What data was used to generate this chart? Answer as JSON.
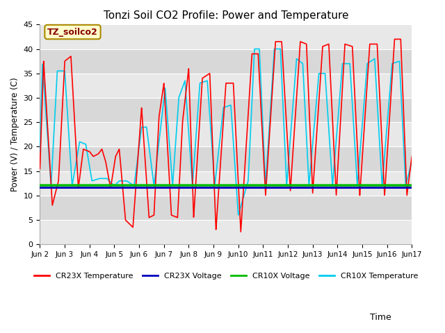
{
  "title": "Tonzi Soil CO2 Profile: Power and Temperature",
  "ylabel": "Power (V) / Temperature (C)",
  "xlabel": "Time",
  "ylim": [
    0,
    45
  ],
  "xlim": [
    0,
    15
  ],
  "yticks": [
    0,
    5,
    10,
    15,
    20,
    25,
    30,
    35,
    40,
    45
  ],
  "xtick_labels": [
    "Jun 2",
    "Jun 3",
    "Jun 4",
    "Jun 5",
    "Jun 6",
    "Jun 7",
    "Jun 8",
    "Jun 9",
    "Jun 10",
    "Jun 11",
    "Jun 12",
    "Jun 13",
    "Jun 14",
    "Jun 15",
    "Jun 16",
    "Jun 17"
  ],
  "annotation_text": "TZ_soilco2",
  "annotation_box_color": "#ffffcc",
  "annotation_text_color": "#880000",
  "cr23x_temp_color": "#ff0000",
  "cr23x_volt_color": "#0000bb",
  "cr10x_volt_color": "#00bb00",
  "cr10x_temp_color": "#00ccee",
  "cr23x_volt_value": 11.6,
  "cr10x_volt_value": 12.1,
  "bg_light": "#e8e8e8",
  "bg_dark": "#d8d8d8",
  "legend_labels": [
    "CR23X Temperature",
    "CR23X Voltage",
    "CR10X Voltage",
    "CR10X Temperature"
  ],
  "legend_colors": [
    "#ff0000",
    "#0000bb",
    "#00bb00",
    "#00ccee"
  ],
  "cr23x_events": [
    [
      0.0,
      15.5
    ],
    [
      0.15,
      37.5
    ],
    [
      0.5,
      8.0
    ],
    [
      0.75,
      13.0
    ],
    [
      1.0,
      37.5
    ],
    [
      1.25,
      38.5
    ],
    [
      1.55,
      11.5
    ],
    [
      1.75,
      19.5
    ],
    [
      2.0,
      19.0
    ],
    [
      2.15,
      18.0
    ],
    [
      2.35,
      18.5
    ],
    [
      2.5,
      19.5
    ],
    [
      2.65,
      17.0
    ],
    [
      2.85,
      11.5
    ],
    [
      3.05,
      18.0
    ],
    [
      3.2,
      19.5
    ],
    [
      3.45,
      5.0
    ],
    [
      3.75,
      3.5
    ],
    [
      4.1,
      28.0
    ],
    [
      4.4,
      5.5
    ],
    [
      4.6,
      6.0
    ],
    [
      4.8,
      26.0
    ],
    [
      5.0,
      33.0
    ],
    [
      5.3,
      6.0
    ],
    [
      5.55,
      5.5
    ],
    [
      5.75,
      25.0
    ],
    [
      6.0,
      36.0
    ],
    [
      6.2,
      5.5
    ],
    [
      6.55,
      34.0
    ],
    [
      6.85,
      35.0
    ],
    [
      7.1,
      3.0
    ],
    [
      7.5,
      33.0
    ],
    [
      7.8,
      33.0
    ],
    [
      8.1,
      2.5
    ],
    [
      8.55,
      39.0
    ],
    [
      8.8,
      39.0
    ],
    [
      9.1,
      10.0
    ],
    [
      9.5,
      41.5
    ],
    [
      9.75,
      41.5
    ],
    [
      10.1,
      11.0
    ],
    [
      10.5,
      41.5
    ],
    [
      10.75,
      41.0
    ],
    [
      11.0,
      10.5
    ],
    [
      11.4,
      40.5
    ],
    [
      11.65,
      41.0
    ],
    [
      11.95,
      10.0
    ],
    [
      12.3,
      41.0
    ],
    [
      12.6,
      40.5
    ],
    [
      12.9,
      10.0
    ],
    [
      13.3,
      41.0
    ],
    [
      13.6,
      41.0
    ],
    [
      13.9,
      10.0
    ],
    [
      14.3,
      42.0
    ],
    [
      14.55,
      42.0
    ],
    [
      14.8,
      10.0
    ],
    [
      15.0,
      18.0
    ]
  ],
  "cr10x_events": [
    [
      0.0,
      19.0
    ],
    [
      0.1,
      37.0
    ],
    [
      0.45,
      12.0
    ],
    [
      0.7,
      35.5
    ],
    [
      1.0,
      35.5
    ],
    [
      1.3,
      12.0
    ],
    [
      1.6,
      21.0
    ],
    [
      1.85,
      20.5
    ],
    [
      2.1,
      13.0
    ],
    [
      2.4,
      13.5
    ],
    [
      2.7,
      13.5
    ],
    [
      3.0,
      12.0
    ],
    [
      3.2,
      13.0
    ],
    [
      3.5,
      13.0
    ],
    [
      3.8,
      12.0
    ],
    [
      4.1,
      24.0
    ],
    [
      4.3,
      24.0
    ],
    [
      4.6,
      12.0
    ],
    [
      4.85,
      23.0
    ],
    [
      5.05,
      32.0
    ],
    [
      5.35,
      12.0
    ],
    [
      5.6,
      30.0
    ],
    [
      5.85,
      33.5
    ],
    [
      6.15,
      12.0
    ],
    [
      6.45,
      33.0
    ],
    [
      6.75,
      33.5
    ],
    [
      7.05,
      12.0
    ],
    [
      7.4,
      28.0
    ],
    [
      7.7,
      28.5
    ],
    [
      8.0,
      6.0
    ],
    [
      8.4,
      13.0
    ],
    [
      8.65,
      40.0
    ],
    [
      8.85,
      40.0
    ],
    [
      9.1,
      12.0
    ],
    [
      9.45,
      40.0
    ],
    [
      9.7,
      40.0
    ],
    [
      9.95,
      12.0
    ],
    [
      10.35,
      38.0
    ],
    [
      10.6,
      37.0
    ],
    [
      10.85,
      12.0
    ],
    [
      11.25,
      35.0
    ],
    [
      11.5,
      35.0
    ],
    [
      11.8,
      12.0
    ],
    [
      12.2,
      37.0
    ],
    [
      12.5,
      37.0
    ],
    [
      12.8,
      12.0
    ],
    [
      13.2,
      37.0
    ],
    [
      13.5,
      38.0
    ],
    [
      13.8,
      12.0
    ],
    [
      14.2,
      37.0
    ],
    [
      14.5,
      37.5
    ],
    [
      14.75,
      12.0
    ],
    [
      15.0,
      17.0
    ]
  ]
}
